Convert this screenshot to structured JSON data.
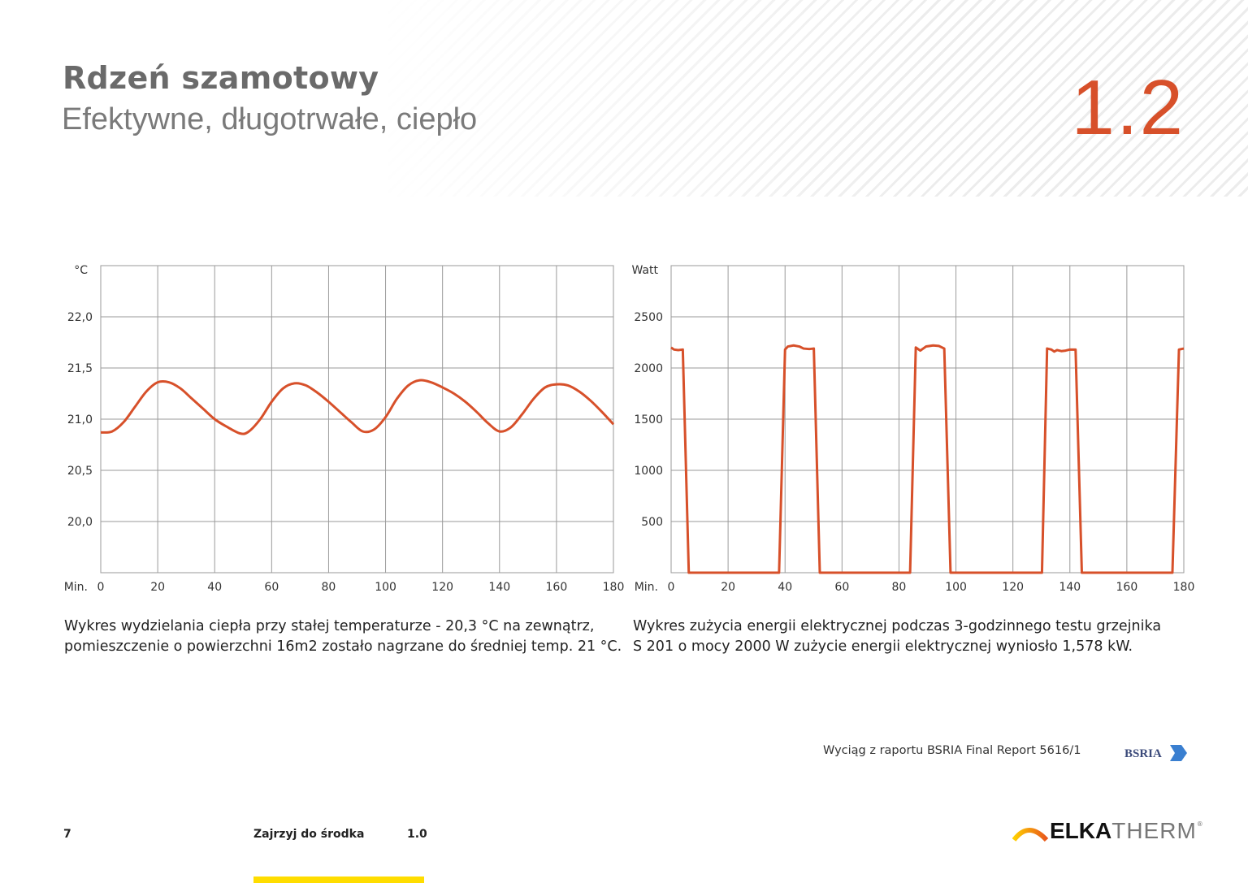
{
  "header": {
    "title": "Rdzeń szamotowy",
    "subtitle": "Efektywne, długotrwałe, ciepło",
    "section_number": "1.2"
  },
  "colors": {
    "accent": "#d7502a",
    "grid": "#9a9a9a",
    "footer_bar": "#ffdd00"
  },
  "captions": {
    "left_line1": "Wykres wydzielania ciepła przy stałej temperaturze  - 20,3 °C na zewnątrz,",
    "left_line2": "pomieszczenie o powierzchni 16m2 zostało nagrzane do średniej temp. 21 °C.",
    "right_line1": "Wykres zużycia energii elektrycznej podczas 3-godzinnego testu grzejnika",
    "right_line2": "S 201 o mocy 2000 W zużycie energii elektrycznej wyniosło 1,578 kW."
  },
  "source": {
    "text": "Wyciąg z raportu BSRIA Final Report 5616/1",
    "logo_text": "BSRIA"
  },
  "footer": {
    "page_number": "7",
    "section_label": "Zajrzyj do środka",
    "section_number": "1.0"
  },
  "brand": {
    "part1": "ELKA",
    "part2": "THERM",
    "reg": "®"
  },
  "chart_data": [
    {
      "type": "line",
      "ylabel": "°C",
      "xlabel": "Min.",
      "xlim": [
        0,
        180
      ],
      "ylim": [
        19.5,
        22.5
      ],
      "grid": true,
      "x_ticks": [
        0,
        20,
        40,
        60,
        80,
        100,
        120,
        140,
        160,
        180
      ],
      "x_tick_labels": [
        "0",
        "20",
        "40",
        "60",
        "80",
        "100",
        "120",
        "140",
        "160",
        "180"
      ],
      "y_ticks": [
        20.0,
        20.5,
        21.0,
        21.5,
        22.0
      ],
      "y_tick_labels": [
        "20,0",
        "20,5",
        "21,0",
        "21,5",
        "22,0"
      ],
      "series": [
        {
          "x": [
            0,
            4,
            8,
            12,
            16,
            20,
            24,
            28,
            32,
            36,
            40,
            44,
            49,
            52,
            56,
            60,
            64,
            68,
            72,
            76,
            80,
            84,
            88,
            92,
            96,
            100,
            104,
            108,
            112,
            116,
            120,
            124,
            128,
            132,
            136,
            140,
            144,
            148,
            152,
            156,
            160,
            164,
            168,
            172,
            176,
            180
          ],
          "y": [
            20.87,
            20.88,
            20.97,
            21.12,
            21.27,
            21.36,
            21.36,
            21.3,
            21.2,
            21.1,
            21.0,
            20.93,
            20.86,
            20.88,
            21.0,
            21.17,
            21.3,
            21.35,
            21.33,
            21.26,
            21.17,
            21.07,
            20.97,
            20.88,
            20.9,
            21.02,
            21.2,
            21.33,
            21.38,
            21.36,
            21.31,
            21.25,
            21.17,
            21.07,
            20.96,
            20.88,
            20.92,
            21.05,
            21.2,
            21.31,
            21.34,
            21.33,
            21.27,
            21.18,
            21.07,
            20.95
          ]
        }
      ]
    },
    {
      "type": "line",
      "ylabel": "Watt",
      "xlabel": "Min.",
      "xlim": [
        0,
        180
      ],
      "ylim": [
        0,
        3000
      ],
      "grid": true,
      "x_ticks": [
        0,
        20,
        40,
        60,
        80,
        100,
        120,
        140,
        160,
        180
      ],
      "x_tick_labels": [
        "0",
        "20",
        "40",
        "60",
        "80",
        "100",
        "120",
        "140",
        "160",
        "180"
      ],
      "y_ticks": [
        500,
        1000,
        1500,
        2000,
        2500
      ],
      "y_tick_labels": [
        "500",
        "1000",
        "1500",
        "2000",
        "2500"
      ],
      "series": [
        {
          "x": [
            0,
            1,
            2.5,
            4.1,
            6.2,
            37.9,
            40,
            41,
            43,
            45,
            46.5,
            48.5,
            50.1,
            52.2,
            83.9,
            85.9,
            87.5,
            89.5,
            92,
            94,
            95.9,
            98.1,
            130.2,
            132,
            133.5,
            134.5,
            135.5,
            137,
            138.5,
            140,
            142,
            144.2,
            176,
            178.3,
            180
          ],
          "y": [
            2200,
            2180,
            2175,
            2180,
            0,
            0,
            2180,
            2210,
            2220,
            2210,
            2190,
            2185,
            2190,
            0,
            0,
            2200,
            2170,
            2210,
            2220,
            2215,
            2190,
            0,
            0,
            2190,
            2180,
            2160,
            2175,
            2165,
            2170,
            2180,
            2180,
            0,
            0,
            2180,
            2190
          ]
        }
      ]
    }
  ]
}
